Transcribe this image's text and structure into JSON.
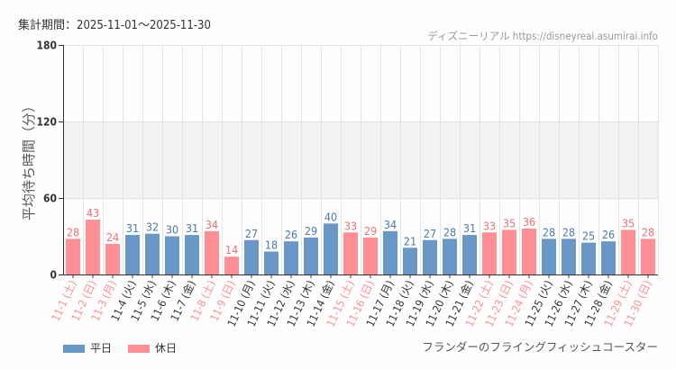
{
  "header": {
    "period": "集計期間：2025-11-01〜2025-11-30",
    "credit": "ディズニーリアル https://disneyreal.asumirai.info"
  },
  "footer": {
    "attraction": "フランダーのフライングフィッシュコースター"
  },
  "colors": {
    "weekday": "#6a98c6",
    "holiday": "#ff8f95",
    "weekday_label": "#4a7ab0",
    "holiday_label": "#f07075"
  },
  "chart_data": {
    "type": "bar",
    "ylabel": "平均待ち時間（分）",
    "ylim": [
      0,
      180
    ],
    "yticks": [
      0,
      60,
      120,
      180
    ],
    "grid": true,
    "shaded_band": [
      60,
      120
    ],
    "legend_position": "bottom-left",
    "legend": [
      {
        "name": "平日",
        "key": "weekday"
      },
      {
        "name": "休日",
        "key": "holiday"
      }
    ],
    "categories": [
      "11-1 (土)",
      "11-2 (日)",
      "11-3 (月)",
      "11-4 (火)",
      "11-5 (水)",
      "11-6 (木)",
      "11-7 (金)",
      "11-8 (土)",
      "11-9 (日)",
      "11-10 (月)",
      "11-11 (火)",
      "11-12 (水)",
      "11-13 (木)",
      "11-14 (金)",
      "11-15 (土)",
      "11-16 (日)",
      "11-17 (月)",
      "11-18 (火)",
      "11-19 (水)",
      "11-20 (木)",
      "11-21 (金)",
      "11-22 (土)",
      "11-23 (日)",
      "11-24 (月)",
      "11-25 (火)",
      "11-26 (水)",
      "11-27 (木)",
      "11-28 (金)",
      "11-29 (土)",
      "11-30 (日)"
    ],
    "values": [
      28,
      43,
      24,
      31,
      32,
      30,
      31,
      34,
      14,
      27,
      18,
      26,
      29,
      40,
      33,
      29,
      34,
      21,
      27,
      28,
      31,
      33,
      35,
      36,
      28,
      28,
      25,
      26,
      35,
      28
    ],
    "day_type": [
      "holiday",
      "holiday",
      "holiday",
      "weekday",
      "weekday",
      "weekday",
      "weekday",
      "holiday",
      "holiday",
      "weekday",
      "weekday",
      "weekday",
      "weekday",
      "weekday",
      "holiday",
      "holiday",
      "weekday",
      "weekday",
      "weekday",
      "weekday",
      "weekday",
      "holiday",
      "holiday",
      "holiday",
      "weekday",
      "weekday",
      "weekday",
      "weekday",
      "holiday",
      "holiday"
    ]
  }
}
